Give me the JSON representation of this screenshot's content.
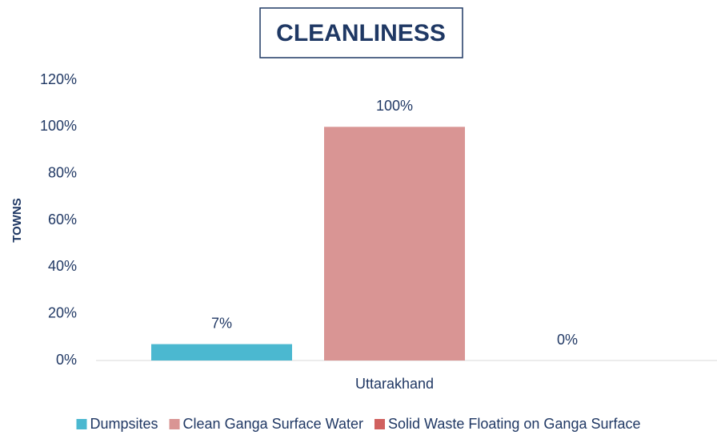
{
  "chart_data": {
    "type": "bar",
    "title": "CLEANLINESS",
    "y_label": "TOWNS",
    "categories": [
      "Uttarakhand"
    ],
    "series": [
      {
        "name": "Dumpsites",
        "color": "#4bb8d0",
        "values": [
          7
        ],
        "value_labels": [
          "7%"
        ]
      },
      {
        "name": "Clean Ganga Surface Water",
        "color": "#d99594",
        "values": [
          100
        ],
        "value_labels": [
          "100%"
        ]
      },
      {
        "name": "Solid Waste Floating on Ganga Surface",
        "color": "#d0605e",
        "values": [
          0
        ],
        "value_labels": [
          "0%"
        ]
      }
    ],
    "ylim": [
      0,
      120
    ],
    "yticks": [
      {
        "value": 0,
        "label": "0%"
      },
      {
        "value": 20,
        "label": "20%"
      },
      {
        "value": 40,
        "label": "40%"
      },
      {
        "value": 60,
        "label": "60%"
      },
      {
        "value": 80,
        "label": "80%"
      },
      {
        "value": 100,
        "label": "100%"
      },
      {
        "value": 120,
        "label": "120%"
      }
    ],
    "grid": false,
    "legend": "bottom"
  }
}
